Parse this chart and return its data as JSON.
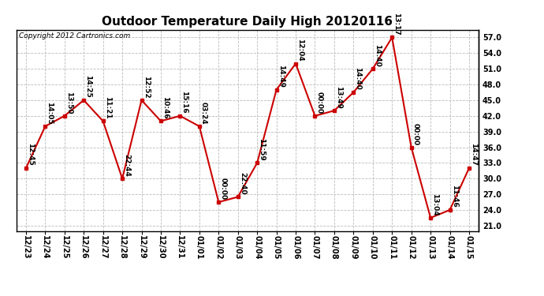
{
  "title": "Outdoor Temperature Daily High 20120116",
  "copyright": "Copyright 2012 Cartronics.com",
  "x_labels": [
    "12/23",
    "12/24",
    "12/25",
    "12/26",
    "12/27",
    "12/28",
    "12/29",
    "12/30",
    "12/31",
    "01/01",
    "01/02",
    "01/03",
    "01/04",
    "01/05",
    "01/06",
    "01/07",
    "01/08",
    "01/09",
    "01/10",
    "01/11",
    "01/12",
    "01/13",
    "01/14",
    "01/15"
  ],
  "y_values": [
    32.0,
    40.0,
    42.0,
    45.0,
    41.0,
    30.0,
    45.0,
    41.0,
    42.0,
    40.0,
    25.5,
    26.5,
    33.0,
    47.0,
    52.0,
    42.0,
    43.0,
    46.5,
    51.0,
    57.0,
    36.0,
    22.5,
    24.0,
    32.0
  ],
  "point_labels": [
    "12:45",
    "14:05",
    "13:50",
    "14:25",
    "11:21",
    "22:44",
    "12:52",
    "10:46",
    "15:16",
    "03:24",
    "00:00",
    "22:40",
    "11:59",
    "14:49",
    "12:04",
    "00:00",
    "13:49",
    "14:40",
    "14:40",
    "13:17",
    "00:00",
    "13:04",
    "11:46",
    "14:47"
  ],
  "y_ticks": [
    21.0,
    24.0,
    27.0,
    30.0,
    33.0,
    36.0,
    39.0,
    42.0,
    45.0,
    48.0,
    51.0,
    54.0,
    57.0
  ],
  "ylim": [
    20.0,
    58.5
  ],
  "line_color": "#cc0000",
  "marker_color": "#cc0000",
  "background_color": "#ffffff",
  "grid_color": "#bbbbbb",
  "title_fontsize": 11,
  "label_fontsize": 6.5,
  "tick_fontsize": 7,
  "copyright_fontsize": 6.5
}
